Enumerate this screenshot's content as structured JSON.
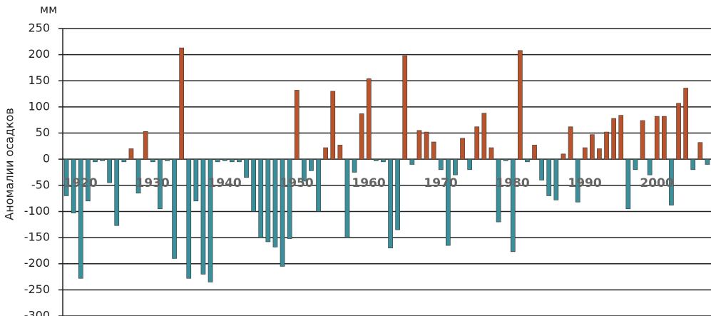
{
  "chart_data": {
    "type": "bar",
    "y_unit": "мм",
    "y_label": "Аномалии осадков",
    "positive_color": "#b9532c",
    "negative_color": "#3a8f9a",
    "grid": true,
    "ylim": [
      -300,
      250
    ],
    "yticks": [
      -300,
      -250,
      -200,
      -150,
      -100,
      -50,
      0,
      50,
      100,
      150,
      200,
      250
    ],
    "categories": [
      "1920",
      null,
      null,
      null,
      null,
      null,
      null,
      null,
      null,
      null,
      "1930",
      null,
      null,
      null,
      null,
      null,
      null,
      null,
      null,
      null,
      "1940",
      null,
      null,
      null,
      null,
      null,
      null,
      null,
      null,
      null,
      "1950",
      null,
      null,
      null,
      null,
      null,
      null,
      null,
      null,
      null,
      "1960",
      null,
      null,
      null,
      null,
      null,
      null,
      null,
      null,
      null,
      "1970",
      null,
      null,
      null,
      null,
      null,
      null,
      null,
      null,
      null,
      "1980",
      null,
      null,
      null,
      null,
      null,
      null,
      null,
      null,
      null,
      "1990",
      null,
      null,
      null,
      null,
      null,
      null,
      null,
      null,
      null,
      "2000",
      null,
      null,
      null,
      null,
      null,
      null,
      null,
      null,
      null
    ],
    "values": [
      -70,
      -103,
      -228,
      -80,
      -5,
      -3,
      -45,
      -127,
      -5,
      20,
      -65,
      53,
      -5,
      -95,
      -3,
      -190,
      213,
      -228,
      -80,
      -220,
      -235,
      -5,
      -3,
      -5,
      -5,
      -35,
      -100,
      -150,
      -158,
      -168,
      -205,
      -152,
      132,
      -42,
      -22,
      -100,
      22,
      130,
      27,
      -150,
      -25,
      87,
      154,
      -3,
      -5,
      -170,
      -135,
      198,
      -10,
      55,
      52,
      33,
      -20,
      -165,
      -30,
      40,
      -20,
      62,
      88,
      22,
      -120,
      -3,
      -177,
      208,
      -5,
      27,
      -40,
      -70,
      -78,
      10,
      62,
      -82,
      22,
      47,
      20,
      52,
      78,
      84,
      -95,
      -20,
      74,
      -30,
      82,
      82,
      -88,
      107,
      136,
      -20,
      32,
      -10
    ]
  }
}
